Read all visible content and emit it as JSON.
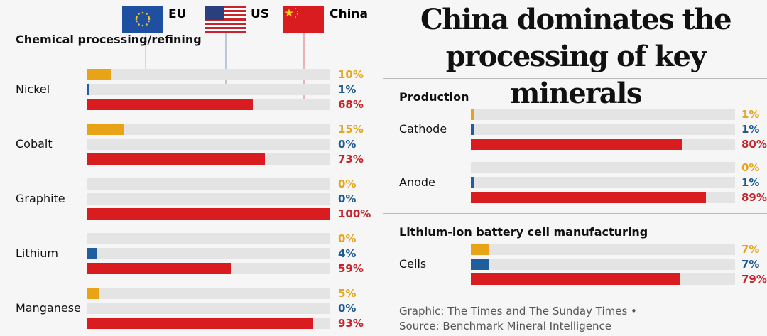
{
  "title": "China dominates the processing of key minerals",
  "legend": [
    {
      "name": "EU",
      "color": "#e8a317",
      "label_color": "#e5a51c"
    },
    {
      "name": "US",
      "color": "#1f5f9e",
      "label_color": "#1e5a8e"
    },
    {
      "name": "China",
      "color": "#d91c1f",
      "label_color": "#c8242b"
    }
  ],
  "source": {
    "line1": "Graphic: The Times and The Sunday Times •",
    "line2": "Source: Benchmark Mineral Intelligence"
  },
  "chart_data": [
    {
      "type": "bar",
      "title": "Chemical processing/refining",
      "categories": [
        "Nickel",
        "Cobalt",
        "Graphite",
        "Lithium",
        "Manganese"
      ],
      "xlim": [
        0,
        100
      ],
      "series": [
        {
          "name": "EU",
          "values": [
            10,
            15,
            0,
            0,
            5
          ],
          "labels": [
            "10%",
            "15%",
            "0%",
            "0%",
            "5%"
          ]
        },
        {
          "name": "US",
          "values": [
            1,
            0,
            0,
            4,
            0
          ],
          "labels": [
            "1%",
            "0%",
            "0%",
            "4%",
            "0%"
          ]
        },
        {
          "name": "China",
          "values": [
            68,
            73,
            100,
            59,
            93
          ],
          "labels": [
            "68%",
            "73%",
            "100%",
            "59%",
            "93%"
          ]
        }
      ]
    },
    {
      "type": "bar",
      "title": "Production",
      "categories": [
        "Cathode",
        "Anode"
      ],
      "xlim": [
        0,
        100
      ],
      "series": [
        {
          "name": "EU",
          "values": [
            1,
            0
          ],
          "labels": [
            "1%",
            "0%"
          ]
        },
        {
          "name": "US",
          "values": [
            1,
            1
          ],
          "labels": [
            "1%",
            "1%"
          ]
        },
        {
          "name": "China",
          "values": [
            80,
            89
          ],
          "labels": [
            "80%",
            "89%"
          ]
        }
      ]
    },
    {
      "type": "bar",
      "title": "Lithium-ion battery cell manufacturing",
      "categories": [
        "Cells"
      ],
      "xlim": [
        0,
        100
      ],
      "series": [
        {
          "name": "EU",
          "values": [
            7
          ],
          "labels": [
            "7%"
          ]
        },
        {
          "name": "US",
          "values": [
            7
          ],
          "labels": [
            "7%"
          ]
        },
        {
          "name": "China",
          "values": [
            79
          ],
          "labels": [
            "79%"
          ]
        }
      ]
    }
  ]
}
